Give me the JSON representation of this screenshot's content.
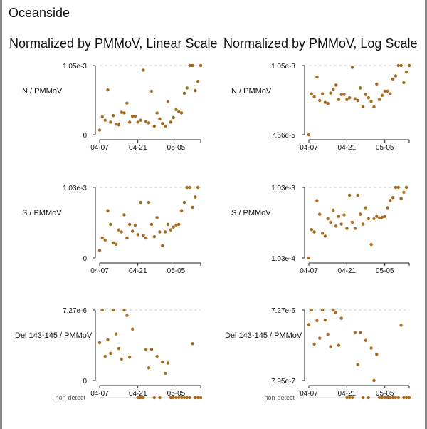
{
  "page": {
    "title": "Oceanside"
  },
  "columns": [
    {
      "title": "Normalized by PMMoV, Linear Scale"
    },
    {
      "title": "Normalized by PMMoV, Log Scale"
    }
  ],
  "colors": {
    "point": "#a86a1e",
    "axis": "#222222",
    "refline": "#cccccc",
    "nondetect_line": "#cccccc"
  },
  "non_detect_label": "non-detect",
  "chart_data": [
    {
      "type": "scatter",
      "scale": "linear",
      "ylabel": "N / PMMoV",
      "ytick_labels": [
        "1.05e-3",
        "0"
      ],
      "ylim": [
        0,
        0.00105
      ],
      "x_tick_labels": [
        "04-07",
        "04-21",
        "05-05"
      ],
      "xlim": [
        "2024-04-07",
        "2024-05-14"
      ],
      "points": [
        {
          "x": "2024-04-07",
          "y": 7e-05
        },
        {
          "x": "2024-04-08",
          "y": 0.00027
        },
        {
          "x": "2024-04-09",
          "y": 0.00022
        },
        {
          "x": "2024-04-10",
          "y": 0.00068
        },
        {
          "x": "2024-04-11",
          "y": 0.00019
        },
        {
          "x": "2024-04-12",
          "y": 0.00029
        },
        {
          "x": "2024-04-13",
          "y": 0.00016
        },
        {
          "x": "2024-04-14",
          "y": 0.00015
        },
        {
          "x": "2024-04-15",
          "y": 0.00034
        },
        {
          "x": "2024-04-16",
          "y": 0.00033
        },
        {
          "x": "2024-04-17",
          "y": 0.00048
        },
        {
          "x": "2024-04-18",
          "y": 0.00019
        },
        {
          "x": "2024-04-19",
          "y": 0.00028
        },
        {
          "x": "2024-04-20",
          "y": 0.00028
        },
        {
          "x": "2024-04-21",
          "y": 0.00019
        },
        {
          "x": "2024-04-22",
          "y": 0.00022
        },
        {
          "x": "2024-04-23",
          "y": 0.00098
        },
        {
          "x": "2024-04-24",
          "y": 0.0002
        },
        {
          "x": "2024-04-25",
          "y": 0.00018
        },
        {
          "x": "2024-04-26",
          "y": 0.00066
        },
        {
          "x": "2024-04-27",
          "y": 0.00013
        },
        {
          "x": "2024-04-28",
          "y": 0.00033
        },
        {
          "x": "2024-04-29",
          "y": 0.00024
        },
        {
          "x": "2024-04-30",
          "y": 0.00017
        },
        {
          "x": "2024-05-01",
          "y": 0.00013
        },
        {
          "x": "2024-05-02",
          "y": 0.0005
        },
        {
          "x": "2024-05-03",
          "y": 0.00019
        },
        {
          "x": "2024-05-04",
          "y": 0.00026
        },
        {
          "x": "2024-05-05",
          "y": 0.00038
        },
        {
          "x": "2024-05-06",
          "y": 0.00035
        },
        {
          "x": "2024-05-07",
          "y": 0.00033
        },
        {
          "x": "2024-05-08",
          "y": 0.00063
        },
        {
          "x": "2024-05-09",
          "y": 0.00071
        },
        {
          "x": "2024-05-10",
          "y": 0.00105
        },
        {
          "x": "2024-05-11",
          "y": 0.00105
        },
        {
          "x": "2024-05-12",
          "y": 0.00067
        },
        {
          "x": "2024-05-13",
          "y": 0.00081
        },
        {
          "x": "2024-05-14",
          "y": 0.00105
        }
      ]
    },
    {
      "type": "scatter",
      "scale": "log",
      "ylabel": "N / PMMoV",
      "ytick_labels": [
        "1.05e-3",
        "7.66e-5"
      ],
      "ylim": [
        7.66e-05,
        0.00105
      ],
      "x_tick_labels": [
        "04-07",
        "04-21",
        "05-05"
      ],
      "xlim": [
        "2024-04-07",
        "2024-05-14"
      ],
      "points": [
        {
          "x": "2024-04-07",
          "y": 7.66e-05
        },
        {
          "x": "2024-04-08",
          "y": 0.00036
        },
        {
          "x": "2024-04-09",
          "y": 0.00032
        },
        {
          "x": "2024-04-10",
          "y": 0.00068
        },
        {
          "x": "2024-04-11",
          "y": 0.00028
        },
        {
          "x": "2024-04-12",
          "y": 0.00036
        },
        {
          "x": "2024-04-13",
          "y": 0.00026
        },
        {
          "x": "2024-04-14",
          "y": 0.00025
        },
        {
          "x": "2024-04-15",
          "y": 0.00037
        },
        {
          "x": "2024-04-16",
          "y": 0.00043
        },
        {
          "x": "2024-04-17",
          "y": 0.0005
        },
        {
          "x": "2024-04-18",
          "y": 0.00029
        },
        {
          "x": "2024-04-19",
          "y": 0.00035
        },
        {
          "x": "2024-04-20",
          "y": 0.00035
        },
        {
          "x": "2024-04-21",
          "y": 0.00029
        },
        {
          "x": "2024-04-22",
          "y": 0.00031
        },
        {
          "x": "2024-04-23",
          "y": 0.00098
        },
        {
          "x": "2024-04-24",
          "y": 0.0003
        },
        {
          "x": "2024-04-25",
          "y": 0.00028
        },
        {
          "x": "2024-04-26",
          "y": 0.00045
        },
        {
          "x": "2024-04-27",
          "y": 0.00022
        },
        {
          "x": "2024-04-28",
          "y": 0.00035
        },
        {
          "x": "2024-04-29",
          "y": 0.00031
        },
        {
          "x": "2024-04-30",
          "y": 0.00027
        },
        {
          "x": "2024-05-01",
          "y": 0.00022
        },
        {
          "x": "2024-05-02",
          "y": 0.00052
        },
        {
          "x": "2024-05-03",
          "y": 0.00029
        },
        {
          "x": "2024-05-04",
          "y": 0.00034
        },
        {
          "x": "2024-05-05",
          "y": 0.0004
        },
        {
          "x": "2024-05-06",
          "y": 0.0004
        },
        {
          "x": "2024-05-07",
          "y": 0.00036
        },
        {
          "x": "2024-05-08",
          "y": 0.00063
        },
        {
          "x": "2024-05-09",
          "y": 0.00071
        },
        {
          "x": "2024-05-10",
          "y": 0.00105
        },
        {
          "x": "2024-05-11",
          "y": 0.00105
        },
        {
          "x": "2024-05-12",
          "y": 0.00055
        },
        {
          "x": "2024-05-13",
          "y": 0.00082
        },
        {
          "x": "2024-05-14",
          "y": 0.00105
        }
      ]
    },
    {
      "type": "scatter",
      "scale": "linear",
      "ylabel": "S / PMMoV",
      "ytick_labels": [
        "1.03e-3",
        "0"
      ],
      "ylim": [
        0,
        0.00103
      ],
      "x_tick_labels": [
        "04-07",
        "04-21",
        "05-05"
      ],
      "xlim": [
        "2024-04-07",
        "2024-05-14"
      ],
      "points": [
        {
          "x": "2024-04-07",
          "y": 0.00011
        },
        {
          "x": "2024-04-08",
          "y": 0.00029
        },
        {
          "x": "2024-04-09",
          "y": 0.00026
        },
        {
          "x": "2024-04-10",
          "y": 0.00069
        },
        {
          "x": "2024-04-11",
          "y": 0.00049
        },
        {
          "x": "2024-04-12",
          "y": 0.00022
        },
        {
          "x": "2024-04-13",
          "y": 0.0002
        },
        {
          "x": "2024-04-14",
          "y": 0.00041
        },
        {
          "x": "2024-04-15",
          "y": 0.00038
        },
        {
          "x": "2024-04-16",
          "y": 0.00063
        },
        {
          "x": "2024-04-17",
          "y": 0.00029
        },
        {
          "x": "2024-04-18",
          "y": 0.00049
        },
        {
          "x": "2024-04-19",
          "y": 0.00039
        },
        {
          "x": "2024-04-20",
          "y": 0.00048
        },
        {
          "x": "2024-04-21",
          "y": 0.00034
        },
        {
          "x": "2024-04-22",
          "y": 0.00081
        },
        {
          "x": "2024-04-23",
          "y": 0.00033
        },
        {
          "x": "2024-04-24",
          "y": 0.00029
        },
        {
          "x": "2024-04-25",
          "y": 0.00081
        },
        {
          "x": "2024-04-26",
          "y": 0.00049
        },
        {
          "x": "2024-04-27",
          "y": 0.00031
        },
        {
          "x": "2024-04-28",
          "y": 0.00059
        },
        {
          "x": "2024-04-29",
          "y": 0.00038
        },
        {
          "x": "2024-04-30",
          "y": 0.00018
        },
        {
          "x": "2024-05-01",
          "y": 0.00038
        },
        {
          "x": "2024-05-02",
          "y": 0.00049
        },
        {
          "x": "2024-05-03",
          "y": 0.00041
        },
        {
          "x": "2024-05-04",
          "y": 0.00045
        },
        {
          "x": "2024-05-05",
          "y": 0.00048
        },
        {
          "x": "2024-05-06",
          "y": 0.00049
        },
        {
          "x": "2024-05-07",
          "y": 0.00069
        },
        {
          "x": "2024-05-08",
          "y": 0.00081
        },
        {
          "x": "2024-05-09",
          "y": 0.00103
        },
        {
          "x": "2024-05-10",
          "y": 0.00103
        },
        {
          "x": "2024-05-11",
          "y": 0.00074
        },
        {
          "x": "2024-05-12",
          "y": 0.00089
        },
        {
          "x": "2024-05-13",
          "y": 0.00103
        }
      ]
    },
    {
      "type": "scatter",
      "scale": "log",
      "ylabel": "S / PMMoV",
      "ytick_labels": [
        "1.03e-3",
        "1.03e-4"
      ],
      "ylim": [
        0.000103,
        0.00103
      ],
      "x_tick_labels": [
        "04-07",
        "04-21",
        "05-05"
      ],
      "xlim": [
        "2024-04-07",
        "2024-05-14"
      ],
      "points": [
        {
          "x": "2024-04-07",
          "y": 0.000103
        },
        {
          "x": "2024-04-08",
          "y": 0.00026
        },
        {
          "x": "2024-04-09",
          "y": 0.00024
        },
        {
          "x": "2024-04-10",
          "y": 0.00067
        },
        {
          "x": "2024-04-11",
          "y": 0.00043
        },
        {
          "x": "2024-04-12",
          "y": 0.00023
        },
        {
          "x": "2024-04-13",
          "y": 0.00021
        },
        {
          "x": "2024-04-14",
          "y": 0.00037
        },
        {
          "x": "2024-04-15",
          "y": 0.00033
        },
        {
          "x": "2024-04-16",
          "y": 0.00049
        },
        {
          "x": "2024-04-17",
          "y": 0.00029
        },
        {
          "x": "2024-04-18",
          "y": 0.0004
        },
        {
          "x": "2024-04-19",
          "y": 0.00031
        },
        {
          "x": "2024-04-20",
          "y": 0.00042
        },
        {
          "x": "2024-04-21",
          "y": 0.00027
        },
        {
          "x": "2024-04-22",
          "y": 0.0008
        },
        {
          "x": "2024-04-23",
          "y": 0.00033
        },
        {
          "x": "2024-04-24",
          "y": 0.00027
        },
        {
          "x": "2024-04-25",
          "y": 0.0008
        },
        {
          "x": "2024-04-26",
          "y": 0.00043
        },
        {
          "x": "2024-04-27",
          "y": 0.00031
        },
        {
          "x": "2024-04-28",
          "y": 0.00053
        },
        {
          "x": "2024-04-29",
          "y": 0.00037
        },
        {
          "x": "2024-04-30",
          "y": 0.00016
        },
        {
          "x": "2024-05-01",
          "y": 0.00037
        },
        {
          "x": "2024-05-02",
          "y": 0.0004
        },
        {
          "x": "2024-05-03",
          "y": 0.00038
        },
        {
          "x": "2024-05-04",
          "y": 0.00039
        },
        {
          "x": "2024-05-05",
          "y": 0.0004
        },
        {
          "x": "2024-05-06",
          "y": 0.00053
        },
        {
          "x": "2024-05-07",
          "y": 0.00067
        },
        {
          "x": "2024-05-08",
          "y": 0.00074
        },
        {
          "x": "2024-05-09",
          "y": 0.00103
        },
        {
          "x": "2024-05-10",
          "y": 0.00103
        },
        {
          "x": "2024-05-11",
          "y": 0.00072
        },
        {
          "x": "2024-05-12",
          "y": 0.00088
        },
        {
          "x": "2024-05-13",
          "y": 0.00103
        }
      ]
    },
    {
      "type": "scatter",
      "scale": "linear",
      "ylabel": "Del 143-145 / PMMoV",
      "ytick_labels": [
        "7.27e-6",
        "0"
      ],
      "ylim": [
        0,
        7.27e-06
      ],
      "x_tick_labels": [
        "04-07",
        "04-21",
        "05-05"
      ],
      "xlim": [
        "2024-04-07",
        "2024-05-14"
      ],
      "points": [
        {
          "x": "2024-04-07",
          "y": 3.9e-06
        },
        {
          "x": "2024-04-08",
          "y": 7.27e-06
        },
        {
          "x": "2024-04-09",
          "y": 2.5e-06
        },
        {
          "x": "2024-04-10",
          "y": 4.2e-06
        },
        {
          "x": "2024-04-11",
          "y": 2.8e-06
        },
        {
          "x": "2024-04-12",
          "y": 7.27e-06
        },
        {
          "x": "2024-04-13",
          "y": 4.8e-06
        },
        {
          "x": "2024-04-14",
          "y": 3.3e-06
        },
        {
          "x": "2024-04-15",
          "y": 2.2e-06
        },
        {
          "x": "2024-04-16",
          "y": 7.27e-06
        },
        {
          "x": "2024-04-17",
          "y": 6.7e-06
        },
        {
          "x": "2024-04-18",
          "y": 2.4e-06
        },
        {
          "x": "2024-04-19",
          "y": 5.3e-06
        },
        {
          "x": "2024-04-24",
          "y": 3.2e-06
        },
        {
          "x": "2024-04-25",
          "y": 1.3e-06
        },
        {
          "x": "2024-04-26",
          "y": 3.2e-06
        },
        {
          "x": "2024-04-28",
          "y": 2.5e-06
        },
        {
          "x": "2024-04-30",
          "y": 1.9e-06
        },
        {
          "x": "2024-05-01",
          "y": 7.5e-07
        },
        {
          "x": "2024-05-02",
          "y": 1.8e-06
        },
        {
          "x": "2024-05-11",
          "y": 3.8e-06
        }
      ],
      "non_detects": [
        "2024-04-21",
        "2024-04-22",
        "2024-04-23",
        "2024-04-27",
        "2024-04-29",
        "2024-05-03",
        "2024-05-04",
        "2024-05-05",
        "2024-05-06",
        "2024-05-07",
        "2024-05-08",
        "2024-05-09",
        "2024-05-10",
        "2024-05-12",
        "2024-05-13",
        "2024-05-14"
      ]
    },
    {
      "type": "scatter",
      "scale": "log",
      "ylabel": "Del 143-145 / PMMoV",
      "ytick_labels": [
        "7.27e-6",
        "7.95e-7"
      ],
      "ylim": [
        7.95e-07,
        7.27e-06
      ],
      "x_tick_labels": [
        "04-07",
        "04-21",
        "05-05"
      ],
      "xlim": [
        "2024-04-07",
        "2024-05-14"
      ],
      "points": [
        {
          "x": "2024-04-07",
          "y": 4.6e-06
        },
        {
          "x": "2024-04-08",
          "y": 7.27e-06
        },
        {
          "x": "2024-04-09",
          "y": 2.5e-06
        },
        {
          "x": "2024-04-10",
          "y": 5.2e-06
        },
        {
          "x": "2024-04-11",
          "y": 3e-06
        },
        {
          "x": "2024-04-12",
          "y": 7.27e-06
        },
        {
          "x": "2024-04-13",
          "y": 5.3e-06
        },
        {
          "x": "2024-04-14",
          "y": 3.4e-06
        },
        {
          "x": "2024-04-15",
          "y": 2.3e-06
        },
        {
          "x": "2024-04-16",
          "y": 7.27e-06
        },
        {
          "x": "2024-04-17",
          "y": 6.7e-06
        },
        {
          "x": "2024-04-18",
          "y": 2.4e-06
        },
        {
          "x": "2024-04-19",
          "y": 5.6e-06
        },
        {
          "x": "2024-04-24",
          "y": 3.6e-06
        },
        {
          "x": "2024-04-25",
          "y": 1.3e-06
        },
        {
          "x": "2024-04-26",
          "y": 3.6e-06
        },
        {
          "x": "2024-04-28",
          "y": 2.8e-06
        },
        {
          "x": "2024-04-30",
          "y": 2.2e-06
        },
        {
          "x": "2024-05-01",
          "y": 7.95e-07
        },
        {
          "x": "2024-05-02",
          "y": 1.8e-06
        },
        {
          "x": "2024-05-11",
          "y": 4.5e-06
        }
      ],
      "non_detects": [
        "2024-04-21",
        "2024-04-22",
        "2024-04-23",
        "2024-04-27",
        "2024-04-29",
        "2024-05-03",
        "2024-05-04",
        "2024-05-05",
        "2024-05-06",
        "2024-05-07",
        "2024-05-08",
        "2024-05-09",
        "2024-05-10",
        "2024-05-12",
        "2024-05-13",
        "2024-05-14"
      ]
    }
  ]
}
